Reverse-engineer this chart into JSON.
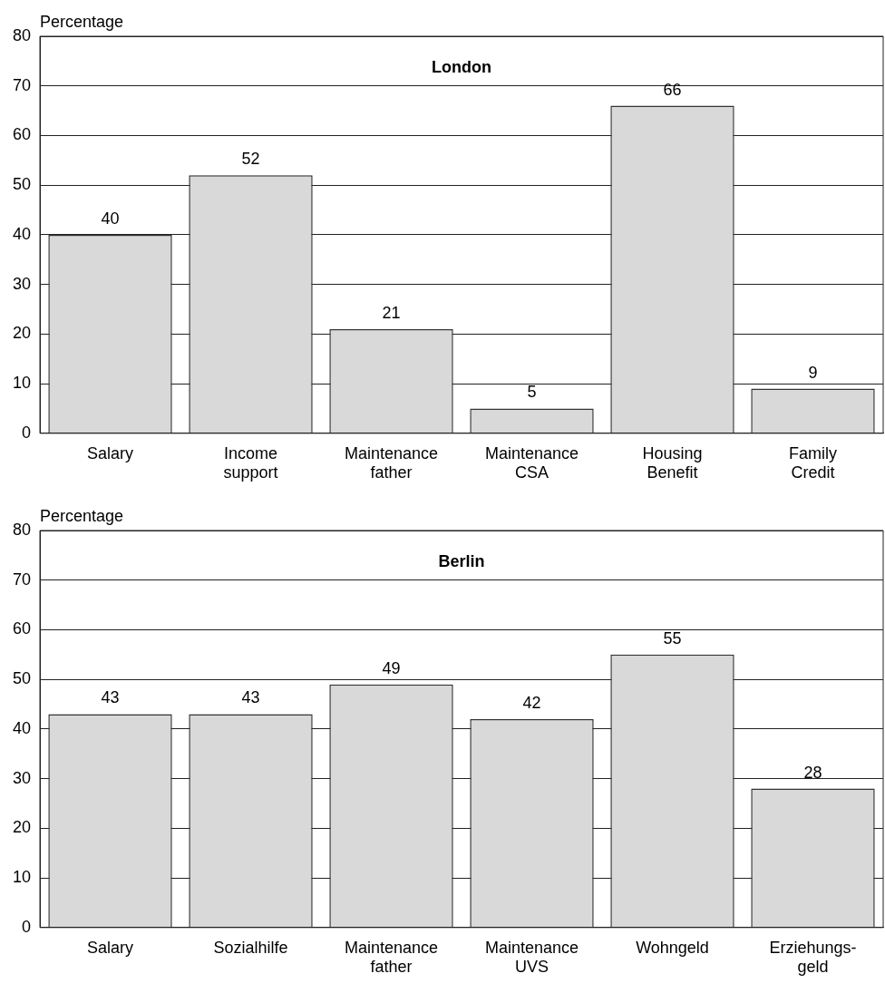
{
  "chart_data": [
    {
      "type": "bar",
      "title": "London",
      "ylabel": "Percentage",
      "categories": [
        "Salary",
        "Income support",
        "Maintenance father",
        "Maintenance CSA",
        "Housing Benefit",
        "Family Credit"
      ],
      "values": [
        40,
        52,
        21,
        5,
        66,
        9
      ],
      "color": "#d9d9d9",
      "ylim": [
        0,
        80
      ],
      "yticks": [
        0,
        10,
        20,
        30,
        40,
        50,
        60,
        70,
        80
      ],
      "grid": "y",
      "data_labels": true,
      "legend": false
    },
    {
      "type": "bar",
      "title": "Berlin",
      "ylabel": "Percentage",
      "categories": [
        "Salary",
        "Sozialhilfe",
        "Maintenance father",
        "Maintenance UVS",
        "Wohngeld",
        "Erziehungs-geld"
      ],
      "values": [
        43,
        43,
        49,
        42,
        55,
        28
      ],
      "color": "#d9d9d9",
      "ylim": [
        0,
        80
      ],
      "yticks": [
        0,
        10,
        20,
        30,
        40,
        50,
        60,
        70,
        80
      ],
      "grid": "y",
      "data_labels": true,
      "legend": false
    }
  ]
}
